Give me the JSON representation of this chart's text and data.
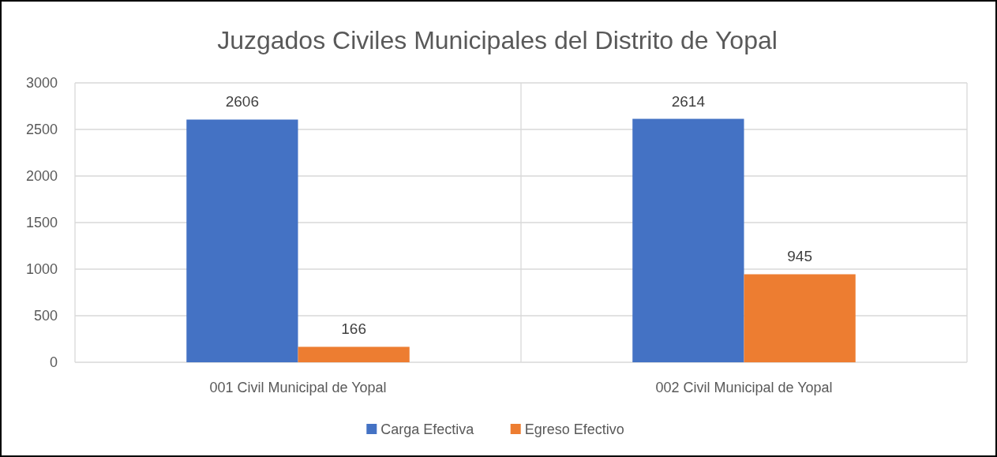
{
  "chart_data": {
    "type": "bar",
    "title": "Juzgados Civiles Municipales del Distrito de Yopal",
    "categories": [
      "001 Civil Municipal de Yopal",
      "002 Civil Municipal de Yopal"
    ],
    "series": [
      {
        "name": "Carga Efectiva",
        "color": "#4472c4",
        "values": [
          2606,
          2614
        ]
      },
      {
        "name": "Egreso Efectivo",
        "color": "#ed7d31",
        "values": [
          166,
          945
        ]
      }
    ],
    "ylim": [
      0,
      3000
    ],
    "yticks": [
      0,
      500,
      1000,
      1500,
      2000,
      2500,
      3000
    ],
    "grid": true,
    "legend": "bottom",
    "data_labels": true
  }
}
